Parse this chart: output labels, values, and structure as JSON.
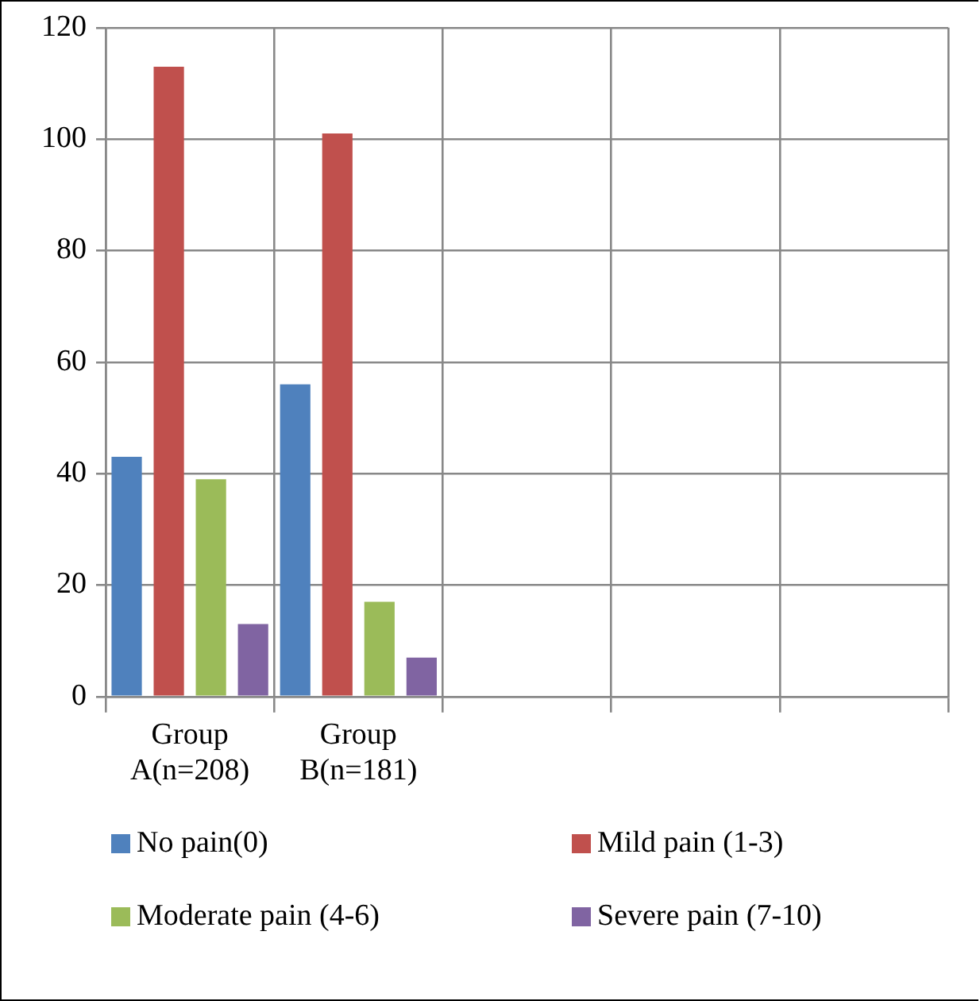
{
  "chart_data": {
    "type": "bar",
    "categories": [
      "Group A(n=208)",
      "Group B(n=181)",
      null,
      null,
      null
    ],
    "series": [
      {
        "name": "No pain(0)",
        "color": "#4f81bd",
        "values": [
          43,
          56,
          null,
          null,
          null
        ]
      },
      {
        "name": "Mild pain (1-3)",
        "color": "#c0504d",
        "values": [
          113,
          101,
          null,
          null,
          null
        ]
      },
      {
        "name": "Moderate pain (4-6)",
        "color": "#9bbb59",
        "values": [
          39,
          17,
          null,
          null,
          null
        ]
      },
      {
        "name": "Severe pain (7-10)",
        "color": "#8064a2",
        "values": [
          13,
          7,
          null,
          null,
          null
        ]
      }
    ],
    "ylim": [
      0,
      120
    ],
    "yticks": [
      0,
      20,
      40,
      60,
      80,
      100,
      120
    ],
    "grid": true,
    "legend": "bottom"
  }
}
